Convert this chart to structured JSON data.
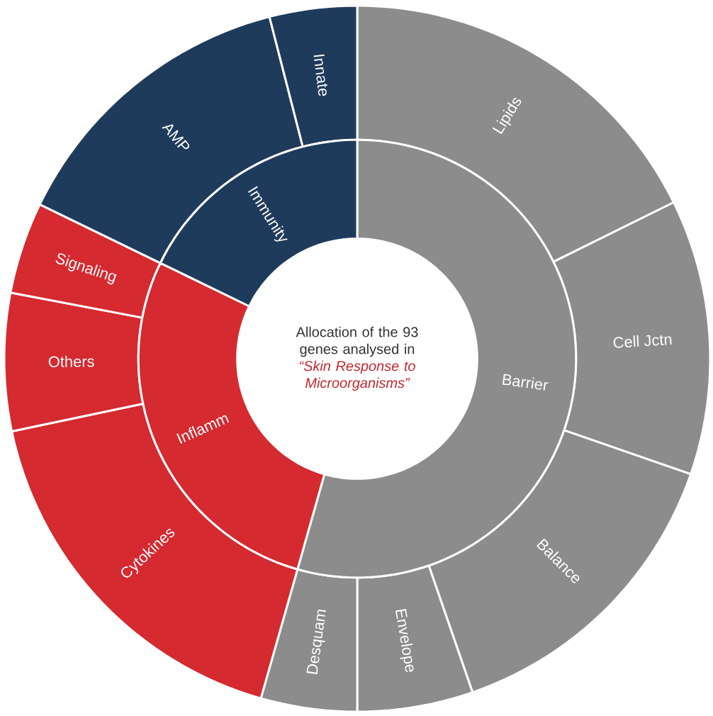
{
  "chart_data": [
    {
      "type": "donut",
      "categories": [
        "Lipids",
        "Cell Jctn",
        "Balance",
        "Envelope",
        "Desquam",
        "Cytokines",
        "Others",
        "Signaling",
        "AMP",
        "Innate"
      ],
      "values": [
        17.7,
        12.6,
        14.4,
        5.3,
        4.4,
        17.3,
        6.3,
        4.2,
        13.8,
        4.0
      ],
      "colors": [
        "#8c8c8c",
        "#8c8c8c",
        "#8c8c8c",
        "#8c8c8c",
        "#8c8c8c",
        "#d42a30",
        "#d42a30",
        "#d42a30",
        "#1f3b5c",
        "#1f3b5c"
      ]
    },
    {
      "type": "donut",
      "title": "Allocation of the 93 genes analysed in",
      "subtitle": "“Skin Response to Microorganisms”",
      "categories": [
        "Barrier",
        "Inflamm",
        "Immunity"
      ],
      "values": [
        54.4,
        27.8,
        17.8
      ],
      "colors": [
        "#8c8c8c",
        "#d42a30",
        "#1f3b5c"
      ]
    }
  ]
}
